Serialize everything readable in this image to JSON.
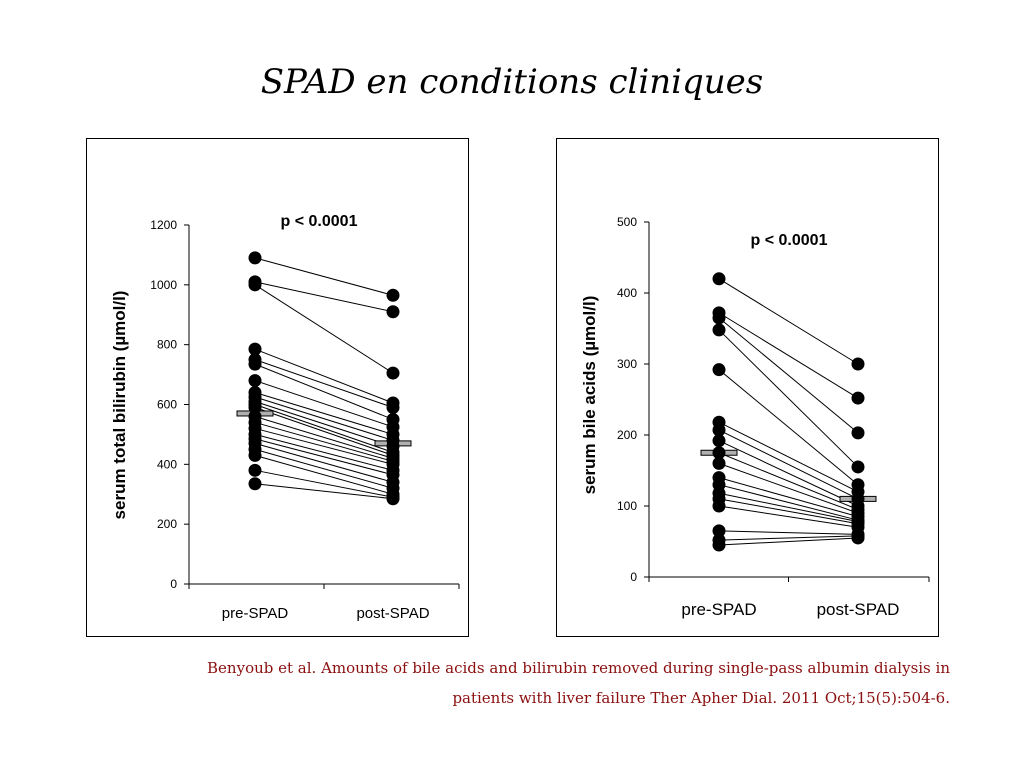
{
  "slide": {
    "title": "SPAD en conditions cliniques",
    "citation_line1": "Benyoub et al. Amounts of bile acids and bilirubin removed during single-pass albumin dialysis in",
    "citation_line2": "patients with liver failure Ther Apher Dial. 2011 Oct;15(5):504-6."
  },
  "chart_data": [
    {
      "type": "scatter",
      "title": "",
      "annotation": "p < 0.0001",
      "xlabel": "",
      "ylabel": "serum total bilirubin (µmol/l)",
      "categories": [
        "pre-SPAD",
        "post-SPAD"
      ],
      "ylim": [
        0,
        1200
      ],
      "yticks": [
        0,
        200,
        400,
        600,
        800,
        1000,
        1200
      ],
      "mean": {
        "pre": 570,
        "post": 470
      },
      "paired_points": [
        [
          1090,
          965
        ],
        [
          1010,
          910
        ],
        [
          1000,
          705
        ],
        [
          785,
          605
        ],
        [
          750,
          590
        ],
        [
          735,
          550
        ],
        [
          680,
          525
        ],
        [
          640,
          500
        ],
        [
          625,
          480
        ],
        [
          610,
          460
        ],
        [
          600,
          440
        ],
        [
          590,
          430
        ],
        [
          560,
          420
        ],
        [
          540,
          410
        ],
        [
          520,
          400
        ],
        [
          500,
          380
        ],
        [
          485,
          365
        ],
        [
          470,
          340
        ],
        [
          450,
          320
        ],
        [
          430,
          300
        ],
        [
          380,
          290
        ],
        [
          335,
          285
        ]
      ],
      "marker_color": "#000000",
      "mean_bar_color": "#b0b0b0"
    },
    {
      "type": "scatter",
      "title": "",
      "annotation": "p < 0.0001",
      "xlabel": "",
      "ylabel": "serum bile acids (µmol/l)",
      "categories": [
        "pre-SPAD",
        "post-SPAD"
      ],
      "ylim": [
        0,
        500
      ],
      "yticks": [
        0,
        100,
        200,
        300,
        400,
        500
      ],
      "mean": {
        "pre": 175,
        "post": 110
      },
      "paired_points": [
        [
          420,
          300
        ],
        [
          372,
          252
        ],
        [
          365,
          203
        ],
        [
          348,
          155
        ],
        [
          292,
          130
        ],
        [
          218,
          120
        ],
        [
          207,
          110
        ],
        [
          192,
          100
        ],
        [
          175,
          95
        ],
        [
          160,
          90
        ],
        [
          140,
          85
        ],
        [
          130,
          80
        ],
        [
          118,
          78
        ],
        [
          110,
          75
        ],
        [
          100,
          70
        ],
        [
          65,
          60
        ],
        [
          52,
          58
        ],
        [
          45,
          55
        ]
      ],
      "marker_color": "#000000",
      "mean_bar_color": "#b0b0b0"
    }
  ]
}
